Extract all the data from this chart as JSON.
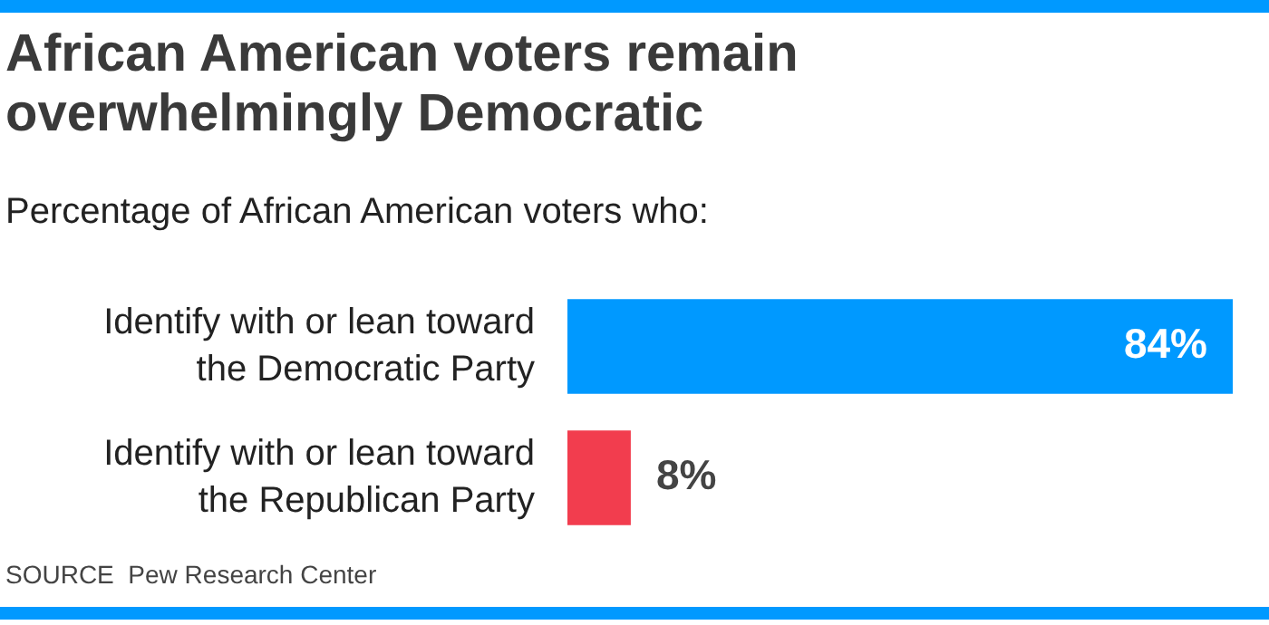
{
  "chart_data": {
    "type": "bar",
    "orientation": "horizontal",
    "title": "African American voters remain overwhelmingly Democratic",
    "subtitle": "Percentage of African American voters who:",
    "categories": [
      "Identify with or lean toward the Democratic Party",
      "Identify with or lean toward the Republican Party"
    ],
    "values": [
      84,
      8
    ],
    "colors": [
      "#0099ff",
      "#f23d4e"
    ],
    "value_labels": [
      "84%",
      "8%"
    ],
    "annotations": [
      "SOURCE  Pew Research Center"
    ]
  }
}
